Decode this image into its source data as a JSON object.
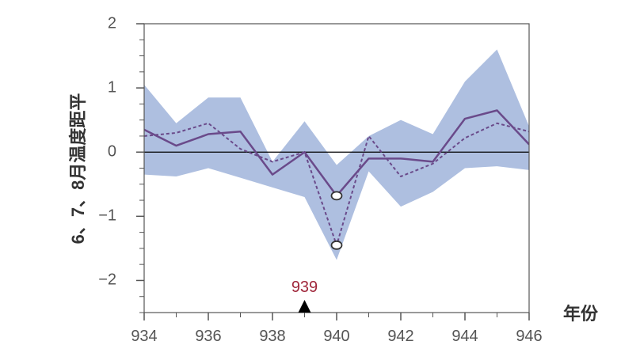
{
  "chart_data": {
    "type": "line",
    "xlabel": "年份",
    "ylabel": "6、7、8月温度距平",
    "xlim": [
      934,
      946
    ],
    "ylim": [
      -2.5,
      2
    ],
    "x_ticks": [
      "934",
      "936",
      "938",
      "940",
      "942",
      "944",
      "946"
    ],
    "y_ticks": [
      "2",
      "1",
      "0",
      "−1",
      "−2"
    ],
    "x": [
      934,
      935,
      936,
      937,
      938,
      939,
      940,
      941,
      942,
      943,
      944,
      945,
      946
    ],
    "band": {
      "upper": [
        1.05,
        0.45,
        0.85,
        0.85,
        -0.15,
        0.48,
        -0.2,
        0.25,
        0.5,
        0.28,
        1.1,
        1.6,
        0.4
      ],
      "lower": [
        -0.35,
        -0.38,
        -0.25,
        -0.4,
        -0.55,
        -0.7,
        -1.68,
        -0.3,
        -0.85,
        -0.62,
        -0.25,
        -0.22,
        -0.28
      ]
    },
    "series": [
      {
        "style": "solid",
        "values": [
          0.35,
          0.1,
          0.28,
          0.32,
          -0.35,
          0.0,
          -0.68,
          -0.1,
          -0.1,
          -0.15,
          0.52,
          0.65,
          0.12
        ],
        "marker": {
          "x": 940,
          "y": -0.68
        }
      },
      {
        "style": "dashed",
        "values": [
          0.25,
          0.3,
          0.45,
          0.05,
          -0.15,
          0.0,
          -1.45,
          0.25,
          -0.38,
          -0.18,
          0.22,
          0.45,
          0.32
        ],
        "marker": {
          "x": 940,
          "y": -1.45
        }
      }
    ],
    "event": {
      "x": 939,
      "label": "939"
    },
    "zero_line": true,
    "colors": {
      "band": "#aebfe0",
      "line": "#6a4a8a",
      "event_label": "#a0283c",
      "axis": "#555555"
    }
  }
}
